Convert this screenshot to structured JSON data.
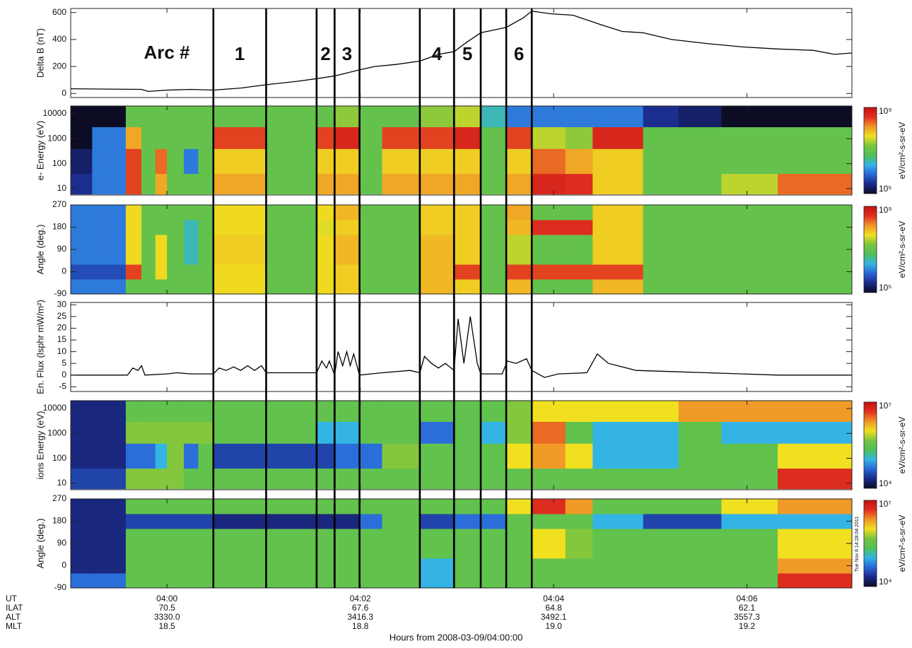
{
  "x_axis": {
    "xlim": [
      -0.0166,
      0.1181
    ],
    "xticks": [
      {
        "value": 0,
        "label": "04:00"
      },
      {
        "value": 0.03333,
        "label": "04:02"
      },
      {
        "value": 0.06667,
        "label": "04:04"
      },
      {
        "value": 0.1,
        "label": "04:06"
      }
    ],
    "tick_row_name": "UT",
    "rows": [
      {
        "name": "ILAT",
        "labels": [
          "70.5",
          "67.6",
          "64.8",
          "62.1"
        ]
      },
      {
        "name": "ALT",
        "labels": [
          "3330.0",
          "3416.3",
          "3492.1",
          "3557.3"
        ]
      },
      {
        "name": "MLT",
        "labels": [
          "18.5",
          "18.8",
          "19.0",
          "19.2"
        ]
      }
    ],
    "label": "Hours from 2008-03-09/04:00:00",
    "bin_edges": [
      -0.0166,
      -0.0129,
      -0.0071,
      -0.0044,
      -0.002,
      0,
      0.0029,
      0.0054,
      0.008,
      0.0171,
      0.0258,
      0.0289,
      0.0332,
      0.0371,
      0.0436,
      0.0495,
      0.0541,
      0.0585,
      0.0629,
      0.0687,
      0.0734,
      0.0821,
      0.0882,
      0.0956,
      0.1053,
      0.1181
    ]
  },
  "arcs": {
    "title": "Arc #",
    "items": [
      {
        "label": "1",
        "start": 0.008,
        "end": 0.0171
      },
      {
        "label": "2",
        "start": 0.0258,
        "end": 0.0289
      },
      {
        "label": "3",
        "start": 0.0289,
        "end": 0.0332
      },
      {
        "label": "4",
        "start": 0.0436,
        "end": 0.0495
      },
      {
        "label": "5",
        "start": 0.0495,
        "end": 0.0541
      },
      {
        "label": "6",
        "start": 0.0585,
        "end": 0.0629
      }
    ]
  },
  "colormap": [
    "#0c0c24",
    "#1a2a88",
    "#2a66d8",
    "#34b4e4",
    "#50c058",
    "#78c440",
    "#f0e020",
    "#f09428",
    "#e03020",
    "#c41010"
  ],
  "timestamp": "Tue Nov  8 14:28:04 2011",
  "chart_data": [
    {
      "type": "line",
      "ylabel": "Delta B (nT)",
      "color": "#000000",
      "ylim": [
        -30,
        630
      ],
      "yticks": [
        0,
        200,
        400,
        600
      ],
      "x": [
        -0.0166,
        -0.0044,
        -0.0032,
        0,
        0.0041,
        0.008,
        0.0127,
        0.0171,
        0.0224,
        0.0258,
        0.0289,
        0.0332,
        0.0358,
        0.0395,
        0.0436,
        0.0468,
        0.0495,
        0.0517,
        0.0541,
        0.0585,
        0.0614,
        0.0629,
        0.0663,
        0.07,
        0.0748,
        0.0785,
        0.0821,
        0.087,
        0.0931,
        0.0992,
        0.1053,
        0.1114,
        0.1151,
        0.1181
      ],
      "y": [
        35,
        30,
        15,
        25,
        30,
        25,
        40,
        65,
        90,
        110,
        130,
        175,
        200,
        215,
        240,
        290,
        310,
        380,
        450,
        490,
        560,
        610,
        590,
        580,
        510,
        460,
        450,
        400,
        370,
        345,
        330,
        320,
        290,
        300
      ]
    },
    {
      "type": "heatmap",
      "ylabel": "e- Energy (eV)",
      "log": true,
      "ylim": [
        5.5,
        20600
      ],
      "yticks": [
        10,
        100,
        1000,
        10000
      ],
      "y_edges": [
        6,
        40,
        400,
        3000,
        20000
      ],
      "clim": [
        100000,
        1000000000
      ],
      "cticks": [
        {
          "value": 100000,
          "label": "10⁵"
        },
        {
          "value": 1000000000,
          "label": "10⁹"
        }
      ],
      "clabel": "eV/cm²-s-sr-eV",
      "z": [
        [
          300000.0,
          200000.0,
          100000.0,
          100000.0
        ],
        [
          1000000.0,
          1000000.0,
          1000000.0,
          100000.0
        ],
        [
          300000000.0,
          300000000.0,
          100000000.0,
          10000000.0
        ],
        [
          10000000.0,
          10000000.0,
          10000000.0,
          10000000.0
        ],
        [
          100000000.0,
          200000000.0,
          10000000.0,
          10000000.0
        ],
        [
          10000000.0,
          10000000.0,
          10000000.0,
          10000000.0
        ],
        [
          10000000.0,
          1000000.0,
          10000000.0,
          10000000.0
        ],
        [
          10000000.0,
          10000000.0,
          10000000.0,
          10000000.0
        ],
        [
          100000000.0,
          60000000.0,
          300000000.0,
          10000000.0
        ],
        [
          10000000.0,
          10000000.0,
          10000000.0,
          10000000.0
        ],
        [
          100000000.0,
          60000000.0,
          300000000.0,
          10000000.0
        ],
        [
          100000000.0,
          60000000.0,
          500000000.0,
          20000000.0
        ],
        [
          10000000.0,
          10000000.0,
          10000000.0,
          10000000.0
        ],
        [
          100000000.0,
          60000000.0,
          300000000.0,
          10000000.0
        ],
        [
          100000000.0,
          60000000.0,
          300000000.0,
          20000000.0
        ],
        [
          100000000.0,
          60000000.0,
          500000000.0,
          30000000.0
        ],
        [
          10000000.0,
          10000000.0,
          10000000.0,
          3000000.0
        ],
        [
          100000000.0,
          60000000.0,
          300000000.0,
          1000000.0
        ],
        [
          500000000.0,
          200000000.0,
          30000000.0,
          1000000.0
        ],
        [
          400000000.0,
          100000000.0,
          20000000.0,
          1000000.0
        ],
        [
          60000000.0,
          60000000.0,
          500000000.0,
          1000000.0
        ],
        [
          10000000.0,
          10000000.0,
          10000000.0,
          300000.0
        ],
        [
          10000000.0,
          10000000.0,
          10000000.0,
          200000.0
        ],
        [
          30000000.0,
          10000000.0,
          10000000.0,
          100000.0
        ],
        [
          200000000.0,
          10000000.0,
          10000000.0,
          100000.0
        ]
      ]
    },
    {
      "type": "heatmap",
      "ylabel": "Angle (deg.)",
      "ylim": [
        -90,
        270
      ],
      "yticks": [
        -90,
        0,
        90,
        180,
        270
      ],
      "y_edges": [
        -90,
        -30,
        30,
        150,
        210,
        270
      ],
      "clim": [
        100000,
        1000000000
      ],
      "cticks": [
        {
          "value": 100000,
          "label": "10⁵"
        },
        {
          "value": 1000000000,
          "label": "10⁹"
        }
      ],
      "clabel": "eV/cm²-s-sr-eV",
      "z": [
        [
          1000000.0,
          500000.0,
          1000000.0,
          1000000.0,
          1000000.0
        ],
        [
          1000000.0,
          500000.0,
          1000000.0,
          1000000.0,
          1000000.0
        ],
        [
          10000000.0,
          300000000.0,
          50000000.0,
          50000000.0,
          50000000.0
        ],
        [
          10000000.0,
          10000000.0,
          10000000.0,
          10000000.0,
          10000000.0
        ],
        [
          10000000.0,
          50000000.0,
          50000000.0,
          10000000.0,
          10000000.0
        ],
        [
          10000000.0,
          10000000.0,
          10000000.0,
          10000000.0,
          10000000.0
        ],
        [
          10000000.0,
          10000000.0,
          3000000.0,
          3000000.0,
          10000000.0
        ],
        [
          10000000.0,
          10000000.0,
          10000000.0,
          10000000.0,
          10000000.0
        ],
        [
          50000000.0,
          50000000.0,
          60000000.0,
          50000000.0,
          50000000.0
        ],
        [
          10000000.0,
          10000000.0,
          10000000.0,
          10000000.0,
          10000000.0
        ],
        [
          50000000.0,
          50000000.0,
          50000000.0,
          40000000.0,
          50000000.0
        ],
        [
          60000000.0,
          60000000.0,
          80000000.0,
          60000000.0,
          80000000.0
        ],
        [
          10000000.0,
          10000000.0,
          10000000.0,
          10000000.0,
          10000000.0
        ],
        [
          10000000.0,
          10000000.0,
          10000000.0,
          10000000.0,
          10000000.0
        ],
        [
          80000000.0,
          80000000.0,
          80000000.0,
          60000000.0,
          60000000.0
        ],
        [
          60000000.0,
          300000000.0,
          60000000.0,
          60000000.0,
          60000000.0
        ],
        [
          10000000.0,
          10000000.0,
          10000000.0,
          10000000.0,
          10000000.0
        ],
        [
          80000000.0,
          300000000.0,
          30000000.0,
          80000000.0,
          100000000.0
        ],
        [
          10000000.0,
          300000000.0,
          10000000.0,
          400000000.0,
          10000000.0
        ],
        [
          10000000.0,
          300000000.0,
          10000000.0,
          400000000.0,
          10000000.0
        ],
        [
          80000000.0,
          300000000.0,
          60000000.0,
          60000000.0,
          60000000.0
        ],
        [
          10000000.0,
          10000000.0,
          10000000.0,
          10000000.0,
          10000000.0
        ],
        [
          10000000.0,
          10000000.0,
          10000000.0,
          10000000.0,
          10000000.0
        ],
        [
          10000000.0,
          10000000.0,
          10000000.0,
          10000000.0,
          10000000.0
        ],
        [
          10000000.0,
          10000000.0,
          10000000.0,
          10000000.0,
          10000000.0
        ]
      ]
    },
    {
      "type": "line",
      "ylabel": "En. Flux (lsphr mW/m²)",
      "color": "#000000",
      "ylim": [
        -7,
        31
      ],
      "yticks": [
        -5,
        0,
        5,
        10,
        15,
        20,
        25,
        30
      ],
      "x": [
        -0.0166,
        -0.0068,
        -0.0059,
        -0.005,
        -0.0044,
        -0.0038,
        0,
        0.0017,
        0.0041,
        0.008,
        0.009,
        0.0102,
        0.0115,
        0.0127,
        0.0139,
        0.0151,
        0.0163,
        0.0171,
        0.02,
        0.0258,
        0.0267,
        0.0275,
        0.028,
        0.0289,
        0.0295,
        0.0303,
        0.031,
        0.0316,
        0.0322,
        0.0332,
        0.0371,
        0.0419,
        0.0436,
        0.0444,
        0.0456,
        0.0468,
        0.048,
        0.0495,
        0.0502,
        0.0512,
        0.0523,
        0.0535,
        0.0541,
        0.0578,
        0.0587,
        0.0602,
        0.062,
        0.0629,
        0.0651,
        0.0675,
        0.0724,
        0.0742,
        0.0761,
        0.0809,
        0.087,
        0.0931,
        0.0992,
        0.1053,
        0.1181
      ],
      "y": [
        0,
        0,
        3,
        2,
        4,
        0,
        0.5,
        1,
        0.5,
        0.5,
        3,
        2,
        3.5,
        2,
        4,
        2,
        4,
        1,
        1,
        1,
        6,
        3,
        6,
        0,
        10,
        4,
        10,
        4,
        9,
        0,
        1,
        2,
        1,
        8,
        5,
        3,
        5,
        2,
        24,
        5,
        25,
        5,
        0.5,
        0.5,
        6,
        5,
        7,
        2,
        -1,
        0.5,
        1,
        9,
        5,
        2,
        1.5,
        1,
        0.5,
        0,
        0
      ]
    },
    {
      "type": "heatmap",
      "ylabel": "ions Energy (eV)",
      "log": true,
      "ylim": [
        5.5,
        20600
      ],
      "yticks": [
        10,
        100,
        1000,
        10000
      ],
      "y_edges": [
        6,
        40,
        400,
        3000,
        20000
      ],
      "clim": [
        10000,
        10000000
      ],
      "cticks": [
        {
          "value": 10000,
          "label": "10⁴"
        },
        {
          "value": 10000000,
          "label": "10⁷"
        }
      ],
      "clabel": "eV/cm²-s-sr-eV",
      "z": [
        [
          30000.0,
          20000.0,
          20000.0,
          20000.0
        ],
        [
          30000.0,
          20000.0,
          20000.0,
          20000.0
        ],
        [
          500000.0,
          50000.0,
          500000.0,
          300000.0
        ],
        [
          500000.0,
          50000.0,
          500000.0,
          300000.0
        ],
        [
          500000.0,
          100000.0,
          500000.0,
          300000.0
        ],
        [
          500000.0,
          500000.0,
          500000.0,
          300000.0
        ],
        [
          300000.0,
          50000.0,
          500000.0,
          300000.0
        ],
        [
          300000.0,
          300000.0,
          500000.0,
          300000.0
        ],
        [
          300000.0,
          30000.0,
          300000.0,
          300000.0
        ],
        [
          300000.0,
          30000.0,
          300000.0,
          300000.0
        ],
        [
          300000.0,
          30000.0,
          100000.0,
          300000.0
        ],
        [
          300000.0,
          50000.0,
          100000.0,
          300000.0
        ],
        [
          300000.0,
          50000.0,
          300000.0,
          300000.0
        ],
        [
          300000.0,
          500000.0,
          300000.0,
          300000.0
        ],
        [
          300000.0,
          300000.0,
          50000.0,
          300000.0
        ],
        [
          300000.0,
          300000.0,
          300000.0,
          300000.0
        ],
        [
          300000.0,
          300000.0,
          100000.0,
          300000.0
        ],
        [
          300000.0,
          1000000.0,
          500000.0,
          500000.0
        ],
        [
          300000.0,
          2000000.0,
          3000000.0,
          1000000.0
        ],
        [
          300000.0,
          1000000.0,
          300000.0,
          1000000.0
        ],
        [
          300000.0,
          100000.0,
          100000.0,
          1000000.0
        ],
        [
          300000.0,
          100000.0,
          100000.0,
          1000000.0
        ],
        [
          300000.0,
          300000.0,
          300000.0,
          2000000.0
        ],
        [
          300000.0,
          300000.0,
          100000.0,
          2000000.0
        ],
        [
          5000000.0,
          1000000.0,
          100000.0,
          2000000.0
        ]
      ]
    },
    {
      "type": "heatmap",
      "ylabel": "Angle (deg.)",
      "ylim": [
        -90,
        270
      ],
      "yticks": [
        -90,
        0,
        90,
        180,
        270
      ],
      "y_edges": [
        -90,
        -30,
        30,
        150,
        210,
        270
      ],
      "clim": [
        10000,
        10000000
      ],
      "cticks": [
        {
          "value": 10000,
          "label": "10⁴"
        },
        {
          "value": 10000000,
          "label": "10⁷"
        }
      ],
      "clabel": "eV/cm²-s-sr-eV",
      "z": [
        [
          50000.0,
          20000.0,
          20000.0,
          20000.0,
          20000.0
        ],
        [
          50000.0,
          20000.0,
          20000.0,
          20000.0,
          20000.0
        ],
        [
          300000.0,
          300000.0,
          300000.0,
          30000.0,
          300000.0
        ],
        [
          300000.0,
          300000.0,
          300000.0,
          30000.0,
          300000.0
        ],
        [
          300000.0,
          300000.0,
          300000.0,
          30000.0,
          300000.0
        ],
        [
          300000.0,
          300000.0,
          300000.0,
          30000.0,
          300000.0
        ],
        [
          300000.0,
          300000.0,
          300000.0,
          30000.0,
          300000.0
        ],
        [
          300000.0,
          300000.0,
          300000.0,
          30000.0,
          300000.0
        ],
        [
          300000.0,
          300000.0,
          300000.0,
          20000.0,
          300000.0
        ],
        [
          300000.0,
          300000.0,
          300000.0,
          20000.0,
          300000.0
        ],
        [
          300000.0,
          300000.0,
          300000.0,
          20000.0,
          300000.0
        ],
        [
          300000.0,
          300000.0,
          300000.0,
          20000.0,
          300000.0
        ],
        [
          300000.0,
          300000.0,
          300000.0,
          50000.0,
          300000.0
        ],
        [
          300000.0,
          300000.0,
          300000.0,
          300000.0,
          300000.0
        ],
        [
          100000.0,
          100000.0,
          300000.0,
          30000.0,
          300000.0
        ],
        [
          300000.0,
          300000.0,
          300000.0,
          50000.0,
          300000.0
        ],
        [
          300000.0,
          300000.0,
          300000.0,
          50000.0,
          300000.0
        ],
        [
          300000.0,
          300000.0,
          300000.0,
          300000.0,
          1000000.0
        ],
        [
          300000.0,
          300000.0,
          1000000.0,
          300000.0,
          5000000.0
        ],
        [
          300000.0,
          300000.0,
          500000.0,
          300000.0,
          2000000.0
        ],
        [
          300000.0,
          300000.0,
          300000.0,
          100000.0,
          300000.0
        ],
        [
          300000.0,
          300000.0,
          300000.0,
          30000.0,
          300000.0
        ],
        [
          300000.0,
          300000.0,
          300000.0,
          30000.0,
          300000.0
        ],
        [
          300000.0,
          300000.0,
          300000.0,
          100000.0,
          1000000.0
        ],
        [
          5000000.0,
          2000000.0,
          1000000.0,
          100000.0,
          2000000.0
        ]
      ]
    }
  ]
}
